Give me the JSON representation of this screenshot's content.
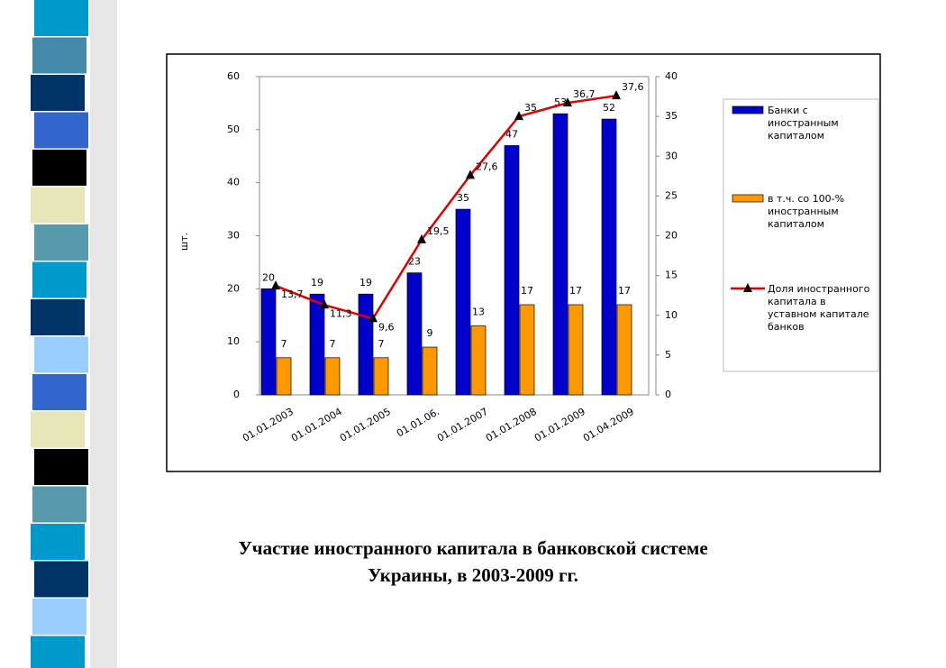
{
  "chart_data": {
    "type": "bar-line",
    "y_label": "шт.",
    "categories": [
      "01.01.2003",
      "01.01.2004",
      "01.01.2005",
      "01.01.06.",
      "01.01.2007",
      "01.01.2008",
      "01.01.2009",
      "01.04.2009"
    ],
    "series": [
      {
        "name": "Банки с иностранным капиталом",
        "color": "#0000cc",
        "type": "bar",
        "values": [
          20,
          19,
          19,
          23,
          35,
          47,
          53,
          52
        ]
      },
      {
        "name": "в т.ч. со 100-% иностранным капиталом",
        "color": "#ff9900",
        "type": "bar",
        "values": [
          7,
          7,
          7,
          9,
          13,
          17,
          17,
          17
        ]
      },
      {
        "name": "Доля иностранного капитала в уставном капитале банков",
        "color": "#dd0000",
        "type": "line",
        "axis": "y2",
        "values": [
          13.7,
          11.3,
          9.6,
          19.5,
          27.6,
          35,
          36.7,
          37.6
        ],
        "value_labels": [
          "13,7",
          "11,3",
          "9,6",
          "19,5",
          "27,6",
          "35",
          "36,7",
          "37,6"
        ]
      }
    ],
    "ylim": [
      0,
      60
    ],
    "yticks": [
      0,
      10,
      20,
      30,
      40,
      50,
      60
    ],
    "y2lim": [
      0,
      40
    ],
    "y2ticks": [
      0,
      5,
      10,
      15,
      20,
      25,
      30,
      35,
      40
    ]
  },
  "caption": [
    "Участие иностранного капитала в банковской системе",
    "Украины, в 2003-2009 гг."
  ]
}
